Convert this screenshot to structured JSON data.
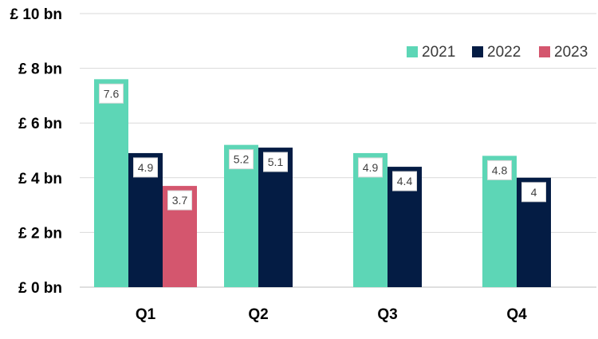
{
  "chart_data": {
    "type": "bar",
    "categories": [
      "Q1",
      "Q2",
      "Q3",
      "Q4"
    ],
    "series": [
      {
        "name": "2021",
        "color": "#5dd6b6",
        "values": [
          7.6,
          5.2,
          4.9,
          4.8
        ],
        "labels": [
          "7.6",
          "5.2",
          "4.9",
          "4.8"
        ]
      },
      {
        "name": "2022",
        "color": "#041c44",
        "values": [
          4.9,
          5.1,
          4.4,
          4.0
        ],
        "labels": [
          "4.9",
          "5.1",
          "4.4",
          "4"
        ]
      },
      {
        "name": "2023",
        "color": "#d4566e",
        "values": [
          3.7,
          null,
          null,
          null
        ],
        "labels": [
          "3.7",
          null,
          null,
          null
        ]
      }
    ],
    "y_ticks": [
      {
        "value": 0,
        "label": "£ 0 bn"
      },
      {
        "value": 2,
        "label": "£ 2 bn"
      },
      {
        "value": 4,
        "label": "£ 4 bn"
      },
      {
        "value": 6,
        "label": "£ 6 bn"
      },
      {
        "value": 8,
        "label": "£ 8 bn"
      },
      {
        "value": 10,
        "label": "£ 10 bn"
      }
    ],
    "ylim": [
      0,
      10
    ],
    "grid": true,
    "legend_position": "top-right",
    "title": "",
    "xlabel": "",
    "ylabel": ""
  },
  "colors": {
    "gridline": "#d9d9d9",
    "axis": "#bfbfbf",
    "label_box_border": "#d9d9d9"
  }
}
